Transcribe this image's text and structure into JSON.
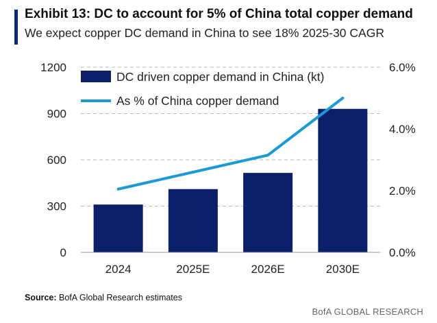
{
  "header": {
    "title": "Exhibit 13: DC to account for 5% of China total copper demand",
    "subtitle": "We expect copper DC demand in China to see 18% 2025-30 CAGR"
  },
  "chart_data": {
    "type": "bar",
    "categories": [
      "2024",
      "2025E",
      "2026E",
      "2030E"
    ],
    "series": [
      {
        "name": "DC driven copper demand in China (kt)",
        "type": "bar",
        "axis": "left",
        "color": "#0b1f6b",
        "values": [
          310,
          410,
          515,
          930
        ]
      },
      {
        "name": "As % of China copper demand",
        "type": "line",
        "axis": "right",
        "color": "#1a9ad6",
        "values": [
          2.05,
          2.6,
          3.15,
          5.0
        ]
      }
    ],
    "y_left": {
      "min": 0,
      "max": 1200,
      "ticks": [
        0,
        300,
        600,
        900,
        1200
      ],
      "tick_labels": [
        "0",
        "300",
        "600",
        "900",
        "1200"
      ]
    },
    "y_right": {
      "min": 0,
      "max": 6,
      "ticks": [
        0,
        2,
        4,
        6
      ],
      "tick_labels": [
        "0.0%",
        "2.0%",
        "4.0%",
        "6.0%"
      ]
    },
    "grid": true,
    "legend": "top-left"
  },
  "footer": {
    "source_label": "Source:",
    "source_text": "BofA Global Research estimates",
    "brand": "BofA GLOBAL RESEARCH"
  }
}
